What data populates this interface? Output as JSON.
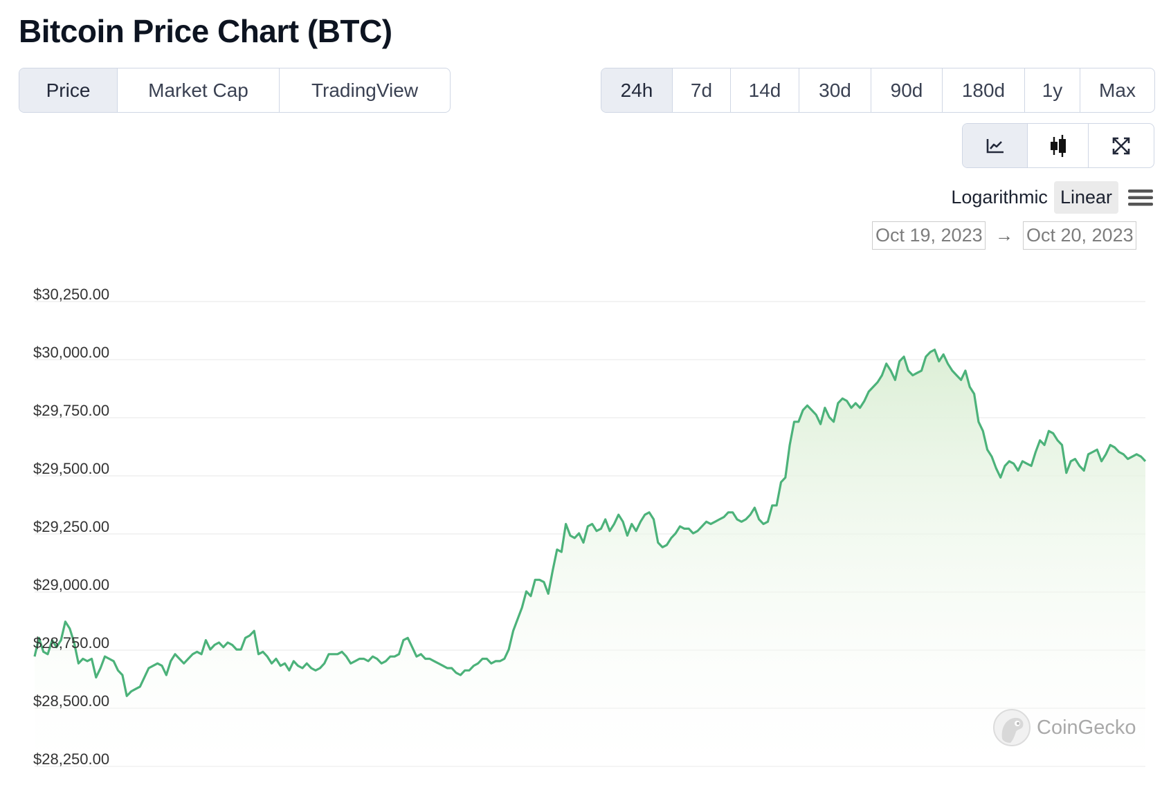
{
  "title": "Bitcoin Price Chart (BTC)",
  "tabs": [
    {
      "label": "Price",
      "active": true
    },
    {
      "label": "Market Cap",
      "active": false
    },
    {
      "label": "TradingView",
      "active": false
    }
  ],
  "ranges": [
    {
      "label": "24h",
      "active": true
    },
    {
      "label": "7d",
      "active": false
    },
    {
      "label": "14d",
      "active": false
    },
    {
      "label": "30d",
      "active": false
    },
    {
      "label": "90d",
      "active": false
    },
    {
      "label": "180d",
      "active": false
    },
    {
      "label": "1y",
      "active": false
    },
    {
      "label": "Max",
      "active": false
    }
  ],
  "chart_types": [
    {
      "icon": "line-chart-icon",
      "active": true
    },
    {
      "icon": "candlestick-icon",
      "active": false
    },
    {
      "icon": "fullscreen-icon",
      "active": false
    }
  ],
  "scale": {
    "logarithmic_label": "Logarithmic",
    "linear_label": "Linear",
    "active": "linear"
  },
  "date_range": {
    "from": "Oct 19, 2023",
    "to": "Oct 20, 2023",
    "arrow": "→"
  },
  "watermark": "CoinGecko",
  "colors": {
    "line": "#4cb27a",
    "fill_top": "#dcefd6",
    "fill_bottom": "#ffffff",
    "active_button": "#eaedf3"
  },
  "chart_data": {
    "type": "area",
    "title": "",
    "xlabel": "",
    "ylabel": "",
    "x_range": [
      "Oct 19, 2023",
      "Oct 20, 2023"
    ],
    "ylim": [
      28250,
      30250
    ],
    "y_ticks": [
      30250,
      30000,
      29750,
      29500,
      29250,
      29000,
      28750,
      28500,
      28250
    ],
    "y_tick_labels": [
      "$30,250.00",
      "$30,000.00",
      "$29,750.00",
      "$29,500.00",
      "$29,250.00",
      "$29,000.00",
      "$28,750.00",
      "$28,500.00",
      "$28,250.00"
    ],
    "grid": true,
    "series": [
      {
        "values": [
          28690,
          28770,
          28710,
          28700,
          28760,
          28730,
          28760,
          28840,
          28810,
          28750,
          28660,
          28680,
          28670,
          28680,
          28600,
          28640,
          28690,
          28680,
          28670,
          28630,
          28610,
          28520,
          28540,
          28550,
          28560,
          28600,
          28640,
          28650,
          28660,
          28650,
          28610,
          28670,
          28700,
          28680,
          28660,
          28680,
          28700,
          28710,
          28700,
          28760,
          28720,
          28740,
          28750,
          28730,
          28750,
          28740,
          28720,
          28720,
          28770,
          28780,
          28800,
          28700,
          28710,
          28690,
          28660,
          28680,
          28650,
          28660,
          28630,
          28670,
          28650,
          28640,
          28660,
          28640,
          28630,
          28640,
          28660,
          28700,
          28700,
          28700,
          28710,
          28690,
          28660,
          28670,
          28680,
          28680,
          28670,
          28690,
          28680,
          28660,
          28670,
          28690,
          28690,
          28700,
          28760,
          28770,
          28730,
          28690,
          28700,
          28680,
          28680,
          28670,
          28660,
          28650,
          28640,
          28640,
          28620,
          28610,
          28630,
          28630,
          28650,
          28660,
          28680,
          28680,
          28660,
          28670,
          28670,
          28680,
          28720,
          28800,
          28850,
          28900,
          28970,
          28950,
          29020,
          29020,
          29010,
          28960,
          29060,
          29150,
          29140,
          29260,
          29210,
          29200,
          29220,
          29180,
          29250,
          29260,
          29230,
          29240,
          29280,
          29230,
          29260,
          29300,
          29270,
          29210,
          29260,
          29230,
          29270,
          29300,
          29310,
          29280,
          29180,
          29160,
          29170,
          29200,
          29220,
          29250,
          29240,
          29240,
          29220,
          29230,
          29250,
          29270,
          29260,
          29270,
          29280,
          29290,
          29310,
          29310,
          29280,
          29270,
          29280,
          29300,
          29330,
          29280,
          29260,
          29270,
          29340,
          29340,
          29440,
          29460,
          29600,
          29700,
          29700,
          29750,
          29770,
          29750,
          29730,
          29690,
          29760,
          29720,
          29700,
          29780,
          29800,
          29790,
          29760,
          29780,
          29760,
          29790,
          29830,
          29850,
          29870,
          29900,
          29950,
          29920,
          29880,
          29960,
          29980,
          29920,
          29900,
          29910,
          29920,
          29980,
          30000,
          30010,
          29960,
          29990,
          29950,
          29920,
          29900,
          29880,
          29920,
          29850,
          29820,
          29700,
          29660,
          29580,
          29550,
          29500,
          29460,
          29510,
          29530,
          29520,
          29490,
          29530,
          29520,
          29510,
          29570,
          29620,
          29600,
          29660,
          29650,
          29620,
          29600,
          29480,
          29530,
          29540,
          29510,
          29490,
          29560,
          29570,
          29580,
          29530,
          29560,
          29600,
          29590,
          29570,
          29560,
          29540,
          29550,
          29560,
          29550,
          29530
        ]
      }
    ]
  }
}
